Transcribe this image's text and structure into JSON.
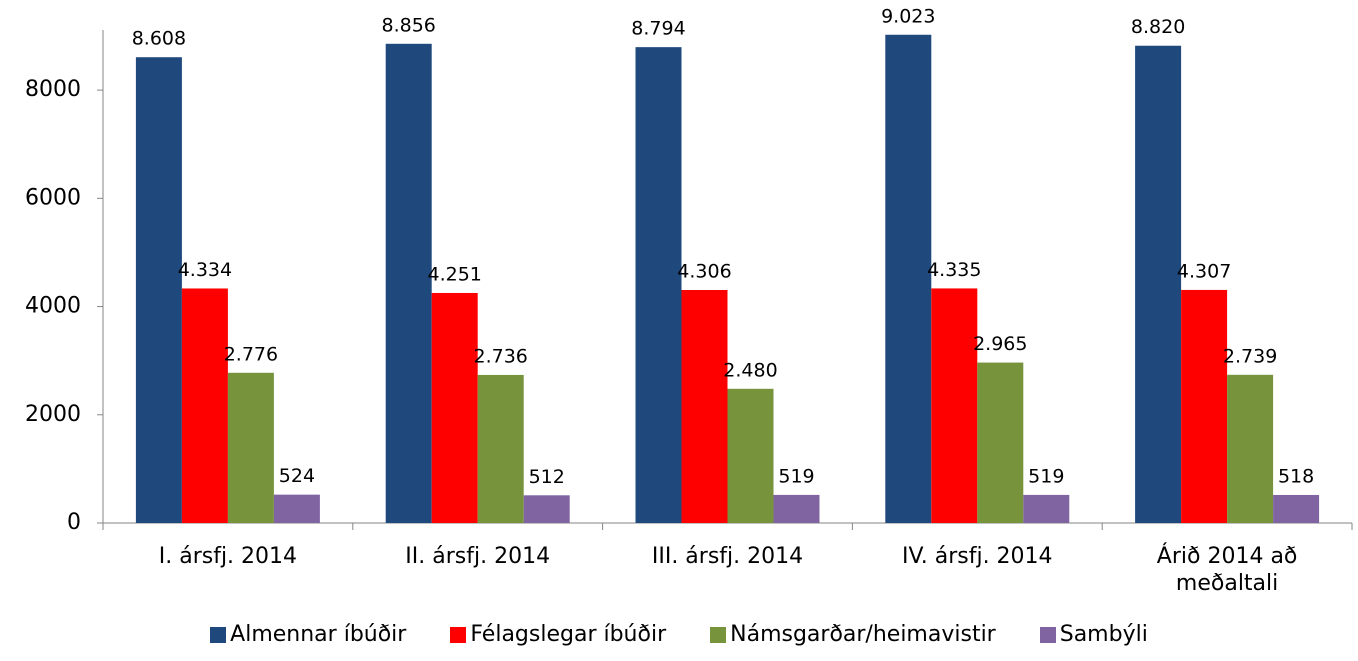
{
  "chart_data": {
    "type": "bar",
    "categories": [
      "I. ársfj. 2014",
      "II. ársfj. 2014",
      "III. ársfj. 2014",
      "IV. ársfj. 2014",
      "Árið 2014 að meðaltali"
    ],
    "series": [
      {
        "name": "Almennar íbúðir",
        "color": "#1f497d",
        "values": [
          8608,
          8856,
          8794,
          9023,
          8820
        ],
        "value_labels": [
          "8.608",
          "8.856",
          "8.794",
          "9.023",
          "8.820"
        ]
      },
      {
        "name": "Félagslegar íbúðir",
        "color": "#ff0000",
        "values": [
          4334,
          4251,
          4306,
          4335,
          4307
        ],
        "value_labels": [
          "4.334",
          "4.251",
          "4.306",
          "4.335",
          "4.307"
        ]
      },
      {
        "name": "Námsgarðar/heimavistir",
        "color": "#77933c",
        "values": [
          2776,
          2736,
          2480,
          2965,
          2739
        ],
        "value_labels": [
          "2.776",
          "2.736",
          "2.480",
          "2.965",
          "2.739"
        ]
      },
      {
        "name": "Sambýli",
        "color": "#8064a2",
        "values": [
          524,
          512,
          519,
          519,
          518
        ],
        "value_labels": [
          "524",
          "512",
          "519",
          "519",
          "518"
        ]
      }
    ],
    "ylim": [
      0,
      9000
    ],
    "yticks": [
      0,
      2000,
      4000,
      6000,
      8000
    ],
    "grid": false,
    "legend": "bottom"
  }
}
